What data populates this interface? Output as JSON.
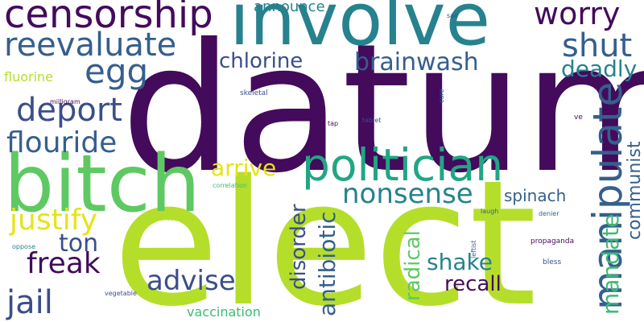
{
  "palette": {
    "dark_purple": "#440a5c",
    "indigo": "#3b4e8a",
    "slate_blue": "#355f8d",
    "teal": "#26828e",
    "sea_green": "#21a685",
    "green": "#3bbb75",
    "light_green": "#5ec962",
    "lime": "#b5de2b",
    "yellow": "#e5e419",
    "grey_blue": "#414487"
  },
  "words": [
    {
      "text": "datum",
      "color": "#440a5c",
      "weight": 1.0
    },
    {
      "text": "elect",
      "color": "#b5de2b",
      "weight": 0.98
    },
    {
      "text": "involve",
      "color": "#26828e",
      "weight": 0.55
    },
    {
      "text": "bitch",
      "color": "#5ec962",
      "weight": 0.5
    },
    {
      "text": "politician",
      "color": "#21a685",
      "weight": 0.42
    },
    {
      "text": "censorship",
      "color": "#440a5c",
      "weight": 0.32
    },
    {
      "text": "manipulate",
      "color": "#355f8d",
      "weight": 0.32
    },
    {
      "text": "reevaluate",
      "color": "#355f8d",
      "weight": 0.27
    },
    {
      "text": "worry",
      "color": "#440a5c",
      "weight": 0.26
    },
    {
      "text": "egg",
      "color": "#355f8d",
      "weight": 0.26
    },
    {
      "text": "shut",
      "color": "#355f8d",
      "weight": 0.25
    },
    {
      "text": "deport",
      "color": "#3b4e8a",
      "weight": 0.25
    },
    {
      "text": "flouride",
      "color": "#355f8d",
      "weight": 0.24
    },
    {
      "text": "nonsense",
      "color": "#26828e",
      "weight": 0.24
    },
    {
      "text": "justify",
      "color": "#e5e419",
      "weight": 0.24
    },
    {
      "text": "jail",
      "color": "#3b4e8a",
      "weight": 0.24
    },
    {
      "text": "brainwash",
      "color": "#355f8d",
      "weight": 0.21
    },
    {
      "text": "chlorine",
      "color": "#3b4e8a",
      "weight": 0.21
    },
    {
      "text": "deadly",
      "color": "#26828e",
      "weight": 0.2
    },
    {
      "text": "freak",
      "color": "#440a5c",
      "weight": 0.2
    },
    {
      "text": "ton",
      "color": "#3b4e8a",
      "weight": 0.2
    },
    {
      "text": "arrive",
      "color": "#e5e419",
      "weight": 0.2
    },
    {
      "text": "advise",
      "color": "#3b4e8a",
      "weight": 0.2
    },
    {
      "text": "antibiotic",
      "color": "#355f8d",
      "weight": 0.2
    },
    {
      "text": "disorder",
      "color": "#3b4e8a",
      "weight": 0.2
    },
    {
      "text": "mandate",
      "color": "#3bbb75",
      "weight": 0.2
    },
    {
      "text": "shake",
      "color": "#26828e",
      "weight": 0.19
    },
    {
      "text": "recall",
      "color": "#440a5c",
      "weight": 0.17
    },
    {
      "text": "radical",
      "color": "#5ec962",
      "weight": 0.17
    },
    {
      "text": "communist",
      "color": "#355f8d",
      "weight": 0.17
    },
    {
      "text": "spinach",
      "color": "#355f8d",
      "weight": 0.15
    },
    {
      "text": "announce",
      "color": "#26828e",
      "weight": 0.14
    },
    {
      "text": "vaccination",
      "color": "#3bbb75",
      "weight": 0.12
    },
    {
      "text": "fluorine",
      "color": "#b5de2b",
      "weight": 0.12
    },
    {
      "text": "skeletal",
      "color": "#3b4e8a",
      "weight": 0.06
    },
    {
      "text": "milligram",
      "color": "#440a5c",
      "weight": 0.05
    },
    {
      "text": "correlation",
      "color": "#3bbb75",
      "weight": 0.05
    },
    {
      "text": "convict",
      "color": "#b5de2b",
      "weight": 0.05
    },
    {
      "text": "oppose",
      "color": "#26828e",
      "weight": 0.05
    },
    {
      "text": "vegetable",
      "color": "#3b4e8a",
      "weight": 0.05
    },
    {
      "text": "leftist",
      "color": "#355f8d",
      "weight": 0.05
    },
    {
      "text": "propaganda",
      "color": "#440a5c",
      "weight": 0.05
    },
    {
      "text": "bless",
      "color": "#3b4e8a",
      "weight": 0.05
    },
    {
      "text": "laugh",
      "color": "#355f8d",
      "weight": 0.05
    },
    {
      "text": "denier",
      "color": "#355f8d",
      "weight": 0.05
    },
    {
      "text": "tap",
      "color": "#440a5c",
      "weight": 0.05
    },
    {
      "text": "tablet",
      "color": "#3b4e8a",
      "weight": 0.05
    },
    {
      "text": "sad",
      "color": "#3b4e8a",
      "weight": 0.05
    },
    {
      "text": "cure",
      "color": "#355f8d",
      "weight": 0.05
    },
    {
      "text": "ve",
      "color": "#440a5c",
      "weight": 0.05
    }
  ]
}
